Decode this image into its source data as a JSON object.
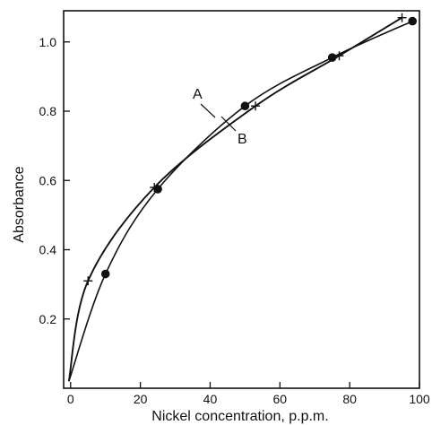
{
  "chart_data": {
    "type": "line",
    "title": "",
    "xlabel": "Nickel concentration, p.p.m.",
    "ylabel": "Absorbance",
    "xlim": [
      -2,
      100
    ],
    "ylim": [
      0,
      1.09
    ],
    "x_ticks": [
      0,
      20,
      40,
      60,
      80,
      100
    ],
    "x_tick_labels": [
      "0",
      "20",
      "40",
      "60",
      "80",
      "100"
    ],
    "y_ticks": [
      0.2,
      0.4,
      0.6,
      0.8,
      1.0
    ],
    "y_tick_labels": [
      "0.2",
      "0.4",
      "0.6",
      "0.8",
      "1.0"
    ],
    "grid": false,
    "legend": "none",
    "curve_labels": [
      "A",
      "B"
    ],
    "series": [
      {
        "name": "A",
        "marker": "circle",
        "points": [
          {
            "x": 10,
            "y": 0.33
          },
          {
            "x": 25,
            "y": 0.575
          },
          {
            "x": 50,
            "y": 0.815
          },
          {
            "x": 75,
            "y": 0.955
          },
          {
            "x": 98,
            "y": 1.06
          }
        ]
      },
      {
        "name": "B",
        "marker": "plus",
        "points": [
          {
            "x": 5,
            "y": 0.31
          },
          {
            "x": 24,
            "y": 0.58
          },
          {
            "x": 53,
            "y": 0.815
          },
          {
            "x": 77,
            "y": 0.96
          },
          {
            "x": 95,
            "y": 1.07
          }
        ]
      }
    ],
    "colors": {
      "ink": "#111111",
      "background": "#ffffff"
    }
  }
}
